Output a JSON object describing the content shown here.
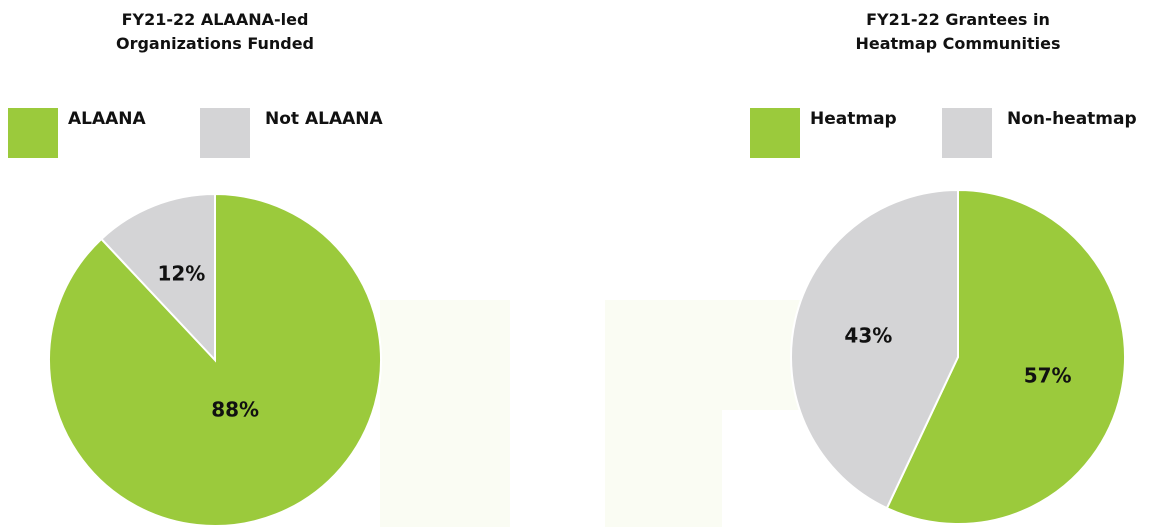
{
  "chart_data": [
    {
      "type": "pie",
      "title": "FY21-22 ALAANA-led Organizations Funded",
      "categories": [
        "ALAANA",
        "Not ALAANA"
      ],
      "values": [
        88,
        12
      ],
      "value_labels": [
        "88%",
        "12%"
      ],
      "colors": [
        "#9bca3c",
        "#d4d4d6"
      ]
    },
    {
      "type": "pie",
      "title": "FY21-22 Grantees in Heatmap Communities",
      "categories": [
        "Heatmap",
        "Non-heatmap"
      ],
      "values": [
        57,
        43
      ],
      "value_labels": [
        "57%",
        "43%"
      ],
      "colors": [
        "#9bca3c",
        "#d4d4d6"
      ]
    }
  ]
}
